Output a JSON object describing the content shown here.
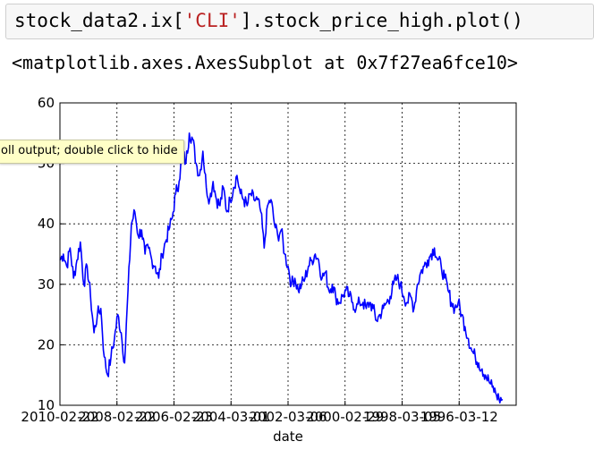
{
  "code_cell": {
    "prefix": "stock_data2.ix[",
    "string": "'CLI'",
    "suffix": "].stock_price_high.plot()"
  },
  "output": {
    "repr": "<matplotlib.axes.AxesSubplot at 0x7f27ea6fce10>"
  },
  "tooltip": {
    "text": "oll output; double click to hide"
  },
  "colors": {
    "line": "#0000ff",
    "string_literal": "#ba2121",
    "tooltip_bg": "#ffffc7"
  },
  "chart_data": {
    "type": "line",
    "title": "",
    "xlabel": "date",
    "ylabel": "",
    "grid": true,
    "x_tick_labels": [
      "2010-02-22",
      "2008-02-22",
      "2006-02-23",
      "2004-03-01",
      "2002-03-06",
      "2000-02-29",
      "1998-03-05",
      "1996-03-12"
    ],
    "y_ticks": [
      10,
      20,
      30,
      40,
      50,
      60
    ],
    "ylim": [
      10,
      60
    ],
    "series": [
      {
        "values": [
          34,
          35,
          33,
          36,
          31,
          34,
          37,
          30,
          33,
          28,
          22,
          25,
          26,
          18,
          15,
          18,
          21,
          25,
          22,
          17,
          29,
          40,
          42,
          38,
          39,
          35,
          36,
          34,
          33,
          31,
          35,
          37,
          39,
          41,
          45,
          47,
          52,
          50,
          55,
          54,
          50,
          48,
          52,
          46,
          44,
          47,
          44,
          43,
          46,
          42,
          44,
          46,
          48,
          45,
          44,
          43,
          45,
          44,
          44,
          42,
          36,
          43,
          44,
          40,
          38,
          39,
          35,
          33,
          30,
          31,
          29,
          30,
          31,
          33,
          34,
          35,
          34,
          31,
          32,
          29,
          30,
          28,
          27,
          28,
          29,
          28,
          27,
          26,
          27,
          27,
          26,
          27,
          26,
          24,
          25,
          26,
          27,
          28,
          30,
          31,
          30,
          28,
          27,
          28,
          26,
          30,
          32,
          33,
          34,
          35,
          36,
          34,
          33,
          31,
          29,
          27,
          26,
          27,
          25,
          23,
          21,
          19,
          18,
          17,
          16,
          15,
          14,
          13,
          12,
          11,
          11
        ]
      }
    ]
  }
}
